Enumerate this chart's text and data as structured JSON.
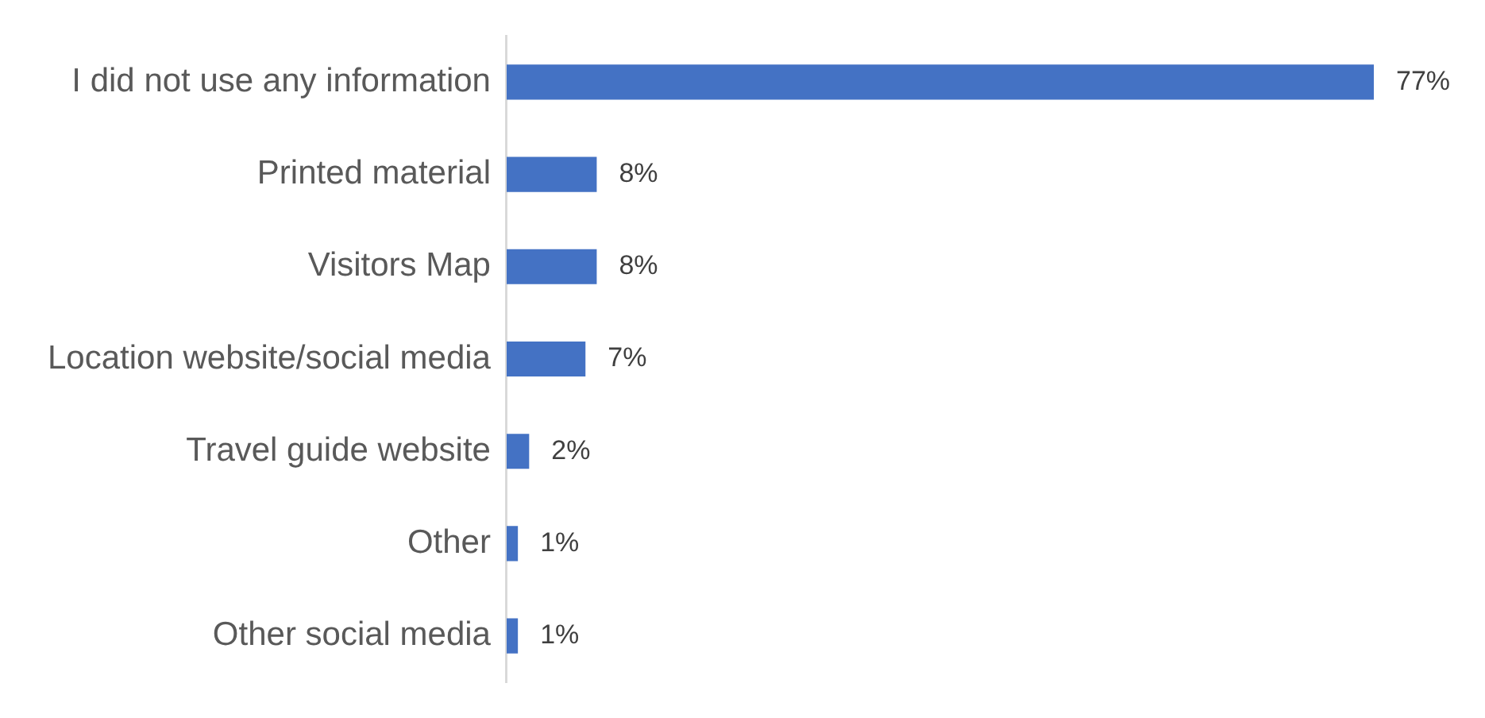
{
  "chart_data": {
    "type": "bar",
    "orientation": "horizontal",
    "categories": [
      "I did not use any information",
      "Printed material",
      "Visitors Map",
      "Location website/social media",
      "Travel guide website",
      "Other",
      "Other social media"
    ],
    "values": [
      77,
      8,
      8,
      7,
      2,
      1,
      1
    ],
    "value_labels": [
      "77%",
      "8%",
      "8%",
      "7%",
      "2%",
      "1%",
      "1%"
    ],
    "color": "#4472c4",
    "legend": false,
    "tick_labels": "y"
  }
}
